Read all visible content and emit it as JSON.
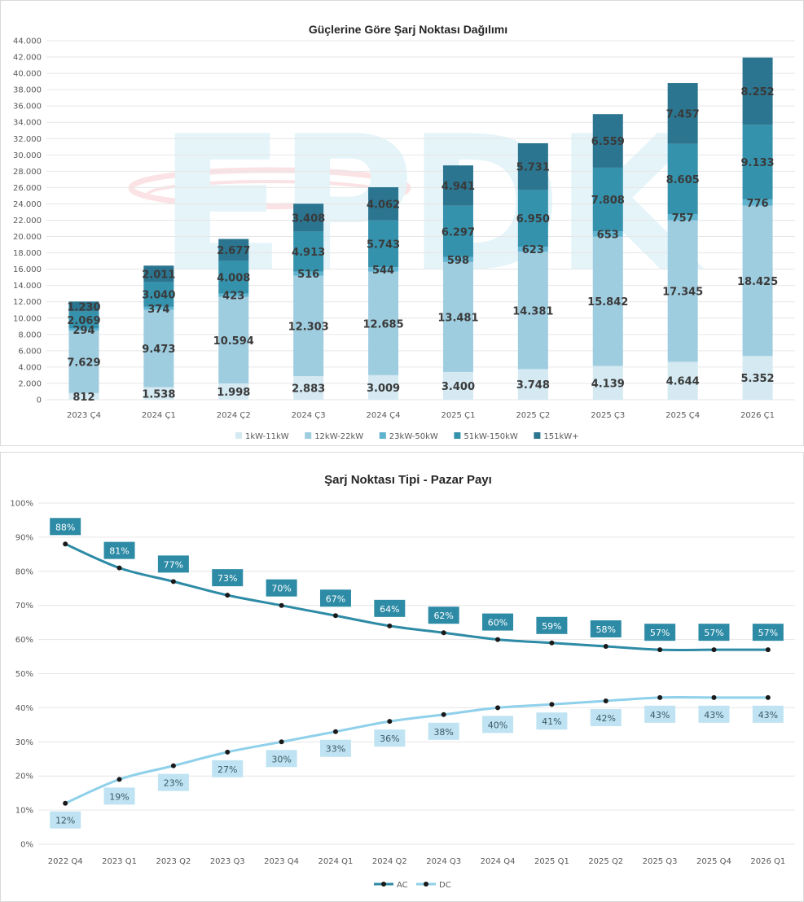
{
  "chart_data": [
    {
      "type": "bar",
      "stacked": true,
      "title": "Güçlerine Göre Şarj Noktası Dağılımı",
      "categories": [
        "2023 Ç4",
        "2024 Ç1",
        "2024 Ç2",
        "2024 Ç3",
        "2024 Ç4",
        "2025 Ç1",
        "2025 Ç2",
        "2025 Ç3",
        "2025 Ç4",
        "2026 Ç1"
      ],
      "ylim": [
        0,
        44000
      ],
      "yticks": [
        "0",
        "2.000",
        "4.000",
        "6.000",
        "8.000",
        "10.000",
        "12.000",
        "14.000",
        "16.000",
        "18.000",
        "20.000",
        "22.000",
        "24.000",
        "26.000",
        "28.000",
        "30.000",
        "32.000",
        "34.000",
        "36.000",
        "38.000",
        "40.000",
        "42.000",
        "44.000"
      ],
      "legend_position": "bottom",
      "series": [
        {
          "name": "1kW-11kW",
          "color": "#d4e9f2",
          "values": [
            812,
            1538,
            1998,
            2883,
            3009,
            3400,
            3748,
            4139,
            4644,
            5352
          ],
          "labels": [
            "812",
            "1.538",
            "1.998",
            "2.883",
            "3.009",
            "3.400",
            "3.748",
            "4.139",
            "4.644",
            "5.352"
          ]
        },
        {
          "name": "12kW-22kW",
          "color": "#9fcde0",
          "values": [
            7629,
            9473,
            10594,
            12303,
            12685,
            13481,
            14381,
            15842,
            17345,
            18425
          ],
          "labels": [
            "7.629",
            "9.473",
            "10.594",
            "12.303",
            "12.685",
            "13.481",
            "14.381",
            "15.842",
            "17.345",
            "18.425"
          ]
        },
        {
          "name": "23kW-50kW",
          "color": "#5fb3cf",
          "values": [
            294,
            374,
            423,
            516,
            544,
            598,
            623,
            653,
            757,
            776
          ],
          "labels": [
            "294",
            "374",
            "423",
            "516",
            "544",
            "598",
            "623",
            "653",
            "757",
            "776"
          ]
        },
        {
          "name": "51kW-150kW",
          "color": "#3592ad",
          "values": [
            2069,
            3040,
            4008,
            4913,
            5743,
            6297,
            6950,
            7808,
            8605,
            9133
          ],
          "labels": [
            "2.069",
            "3.040",
            "4.008",
            "4.913",
            "5.743",
            "6.297",
            "6.950",
            "7.808",
            "8.605",
            "9.133"
          ]
        },
        {
          "name": "151kW+",
          "color": "#2b7590",
          "values": [
            1230,
            2011,
            2677,
            3408,
            4062,
            4941,
            5731,
            6559,
            7457,
            8252
          ],
          "labels": [
            "1.230",
            "2.011",
            "2.677",
            "3.408",
            "4.062",
            "4.941",
            "5.731",
            "6.559",
            "7.457",
            "8.252"
          ]
        }
      ]
    },
    {
      "type": "line",
      "title": "Şarj Noktası Tipi - Pazar Payı",
      "categories": [
        "2022 Q4",
        "2023 Q1",
        "2023 Q2",
        "2023 Q3",
        "2023 Q4",
        "2024 Q1",
        "2024 Q2",
        "2024 Q3",
        "2024 Q4",
        "2025 Q1",
        "2025 Q2",
        "2025 Q3",
        "2025 Q4",
        "2026 Q1"
      ],
      "ylim": [
        0,
        100
      ],
      "yticks": [
        "0%",
        "10%",
        "20%",
        "30%",
        "40%",
        "50%",
        "60%",
        "70%",
        "80%",
        "90%",
        "100%"
      ],
      "legend_position": "bottom",
      "series": [
        {
          "name": "AC",
          "color": "#2e8ba6",
          "values": [
            88,
            81,
            77,
            73,
            70,
            67,
            64,
            62,
            60,
            59,
            58,
            57,
            57,
            57
          ],
          "labels": [
            "88%",
            "81%",
            "77%",
            "73%",
            "70%",
            "67%",
            "64%",
            "62%",
            "60%",
            "59%",
            "58%",
            "57%",
            "57%",
            "57%"
          ]
        },
        {
          "name": "DC",
          "color": "#8fd0ea",
          "values": [
            12,
            19,
            23,
            27,
            30,
            33,
            36,
            38,
            40,
            41,
            42,
            43,
            43,
            43
          ],
          "labels": [
            "12%",
            "19%",
            "23%",
            "27%",
            "30%",
            "33%",
            "36%",
            "38%",
            "40%",
            "41%",
            "42%",
            "43%",
            "43%",
            "43%"
          ]
        }
      ]
    }
  ],
  "watermark": {
    "text": "EPDK"
  }
}
